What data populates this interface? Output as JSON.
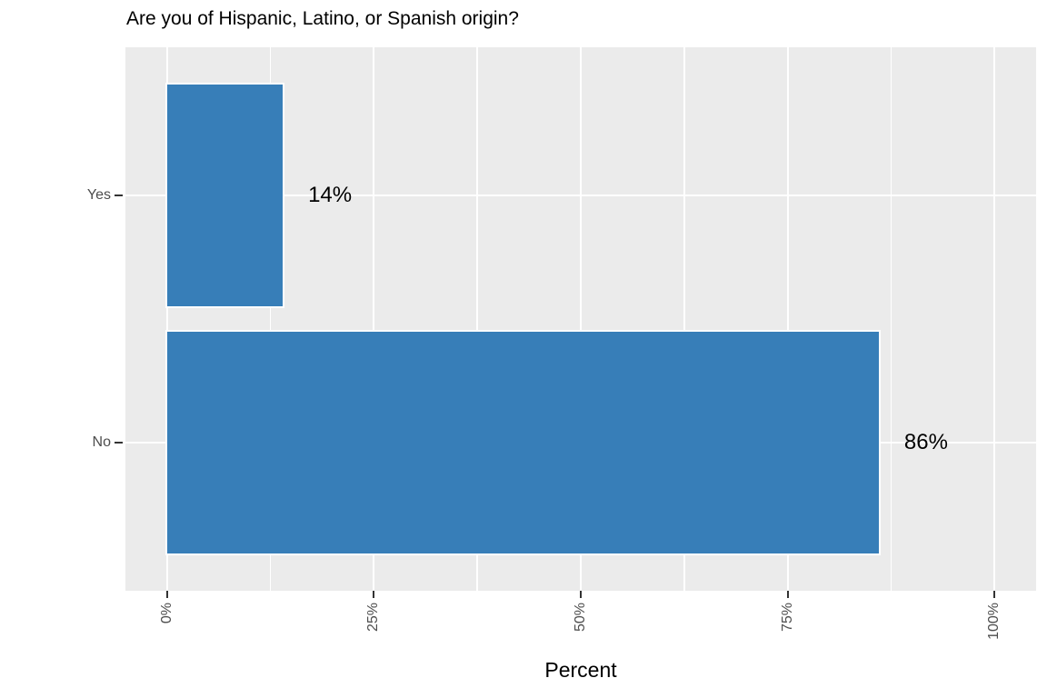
{
  "chart_data": {
    "type": "bar",
    "orientation": "horizontal",
    "title": "Are you of Hispanic, Latino, or Spanish origin?",
    "xlabel": "Percent",
    "ylabel": "",
    "categories": [
      "Yes",
      "No"
    ],
    "values": [
      14,
      86
    ],
    "value_labels": [
      "14%",
      "86%"
    ],
    "x_axis": {
      "range": [
        -5,
        105
      ],
      "ticks": [
        {
          "value": 0,
          "label": "0%"
        },
        {
          "value": 25,
          "label": "25%"
        },
        {
          "value": 50,
          "label": "50%"
        },
        {
          "value": 75,
          "label": "75%"
        },
        {
          "value": 100,
          "label": "100%"
        }
      ],
      "minor_breaks": [
        12.5,
        37.5,
        62.5,
        87.5
      ],
      "tick_label_rotation": -90
    },
    "grid": true,
    "legend": false,
    "colors": {
      "bar_fill": "#377EB8",
      "bar_stroke": "#FFFFFF",
      "panel_bg": "#EBEBEB",
      "gridline": "#FFFFFF",
      "tick_label": "#4D4D4D",
      "tick_mark": "#333333",
      "text": "#000000",
      "figure_bg": "#FFFFFF"
    }
  }
}
